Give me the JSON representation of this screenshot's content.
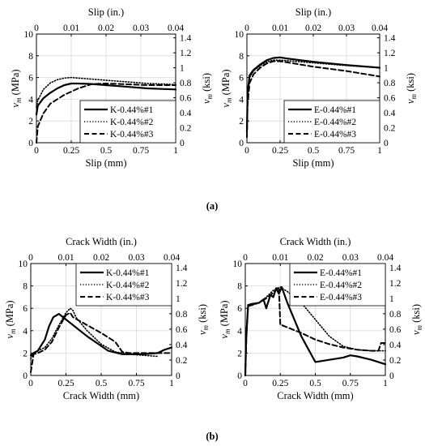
{
  "panel_labels": {
    "a": "(a)",
    "b": "(b)"
  },
  "chart_data": [
    {
      "id": "a-left",
      "type": "line",
      "xlabel": "Slip (mm)",
      "x2label": "Slip (in.)",
      "ylabel": "vm (MPa)",
      "y2label": "vm (ksi)",
      "xlim": [
        0,
        1
      ],
      "ylim": [
        0,
        10
      ],
      "x2lim": [
        0,
        0.04
      ],
      "y2lim": [
        0,
        1.45
      ],
      "x_ticks": [
        "0",
        "0.25",
        "0.5",
        "0.75",
        "1"
      ],
      "y_ticks": [
        "0",
        "2",
        "4",
        "6",
        "8",
        "10"
      ],
      "x2_ticks": [
        "0",
        "0.01",
        "0.02",
        "0.03",
        "0.04"
      ],
      "y2_ticks": [
        "0",
        "0.2",
        "0.4",
        "0.6",
        "0.8",
        "1",
        "1.2",
        "1.4"
      ],
      "legend_position": "bottom-right",
      "series": [
        {
          "name": "K-0.44%#1",
          "style": "solid",
          "x": [
            0,
            0.01,
            0.05,
            0.1,
            0.15,
            0.2,
            0.25,
            0.3,
            0.4,
            0.5,
            0.6,
            0.7,
            0.8,
            0.9,
            1.0
          ],
          "y": [
            2.6,
            3.4,
            4.1,
            4.6,
            5.0,
            5.3,
            5.45,
            5.45,
            5.4,
            5.3,
            5.2,
            5.1,
            5.0,
            4.95,
            4.9
          ]
        },
        {
          "name": "K-0.44%#2",
          "style": "dotted",
          "x": [
            0,
            0.01,
            0.05,
            0.1,
            0.15,
            0.2,
            0.25,
            0.3,
            0.4,
            0.5,
            0.6,
            0.7,
            0.8,
            0.9,
            1.0
          ],
          "y": [
            3.3,
            3.9,
            4.9,
            5.5,
            5.8,
            5.95,
            6.0,
            5.95,
            5.85,
            5.75,
            5.65,
            5.55,
            5.45,
            5.4,
            5.35
          ]
        },
        {
          "name": "K-0.44%#3",
          "style": "dashed",
          "x": [
            0,
            0.01,
            0.05,
            0.1,
            0.2,
            0.3,
            0.4,
            0.5,
            0.6,
            0.7,
            0.8,
            0.9,
            1.0
          ],
          "y": [
            0.0,
            1.5,
            2.7,
            3.6,
            4.4,
            5.0,
            5.4,
            5.45,
            5.4,
            5.35,
            5.3,
            5.3,
            5.3
          ]
        }
      ]
    },
    {
      "id": "a-right",
      "type": "line",
      "xlabel": "Slip (mm)",
      "x2label": "Slip (in.)",
      "ylabel": "vm (MPa)",
      "y2label": "vm (ksi)",
      "xlim": [
        0,
        1
      ],
      "ylim": [
        0,
        10
      ],
      "x2lim": [
        0,
        0.04
      ],
      "y2lim": [
        0,
        1.45
      ],
      "x_ticks": [
        "0",
        "0.25",
        "0.5",
        "0.75",
        "1"
      ],
      "y_ticks": [
        "0",
        "2",
        "4",
        "6",
        "8",
        "10"
      ],
      "x2_ticks": [
        "0",
        "0.01",
        "0.02",
        "0.03",
        "0.04"
      ],
      "y2_ticks": [
        "0",
        "0.2",
        "0.4",
        "0.6",
        "0.8",
        "1",
        "1.2",
        "1.4"
      ],
      "legend_position": "bottom-right",
      "series": [
        {
          "name": "E-0.44%#1",
          "style": "solid",
          "x": [
            0,
            0.005,
            0.02,
            0.05,
            0.1,
            0.15,
            0.2,
            0.25,
            0.3,
            0.5,
            0.75,
            1.0
          ],
          "y": [
            1.0,
            4.5,
            6.2,
            6.7,
            7.2,
            7.6,
            7.8,
            7.85,
            7.75,
            7.45,
            7.15,
            6.9
          ]
        },
        {
          "name": "E-0.44%#2",
          "style": "dotted",
          "x": [
            0,
            0.005,
            0.02,
            0.05,
            0.1,
            0.15,
            0.2,
            0.25,
            0.3,
            0.5,
            0.75,
            1.0
          ],
          "y": [
            1.5,
            5.0,
            6.0,
            6.6,
            7.1,
            7.45,
            7.6,
            7.6,
            7.55,
            7.35,
            7.1,
            6.9
          ]
        },
        {
          "name": "E-0.44%#3",
          "style": "dashed",
          "x": [
            0,
            0.005,
            0.02,
            0.05,
            0.1,
            0.15,
            0.2,
            0.25,
            0.3,
            0.5,
            0.75,
            1.0
          ],
          "y": [
            0.5,
            3.5,
            5.5,
            6.3,
            6.9,
            7.3,
            7.5,
            7.5,
            7.4,
            7.0,
            6.6,
            6.1
          ]
        }
      ]
    },
    {
      "id": "b-left",
      "type": "line",
      "xlabel": "Crack Width (mm)",
      "x2label": "Crack Width (in.)",
      "ylabel": "vm (MPa)",
      "y2label": "vm (ksi)",
      "xlim": [
        0,
        1
      ],
      "ylim": [
        0,
        10
      ],
      "x2lim": [
        0,
        0.04
      ],
      "y2lim": [
        0,
        1.45
      ],
      "x_ticks": [
        "0",
        "0.25",
        "0.5",
        "0.75",
        "1"
      ],
      "y_ticks": [
        "0",
        "2",
        "4",
        "6",
        "8",
        "10"
      ],
      "x2_ticks": [
        "0",
        "0.01",
        "0.02",
        "0.03",
        "0.04"
      ],
      "y2_ticks": [
        "0",
        "0.2",
        "0.4",
        "0.6",
        "0.8",
        "1",
        "1.2",
        "1.4"
      ],
      "legend_position": "top-right",
      "series": [
        {
          "name": "K-0.44%#1",
          "style": "solid",
          "x": [
            0,
            0.01,
            0.02,
            0.05,
            0.1,
            0.13,
            0.16,
            0.2,
            0.22,
            0.25,
            0.4,
            0.55,
            0.65,
            0.7,
            0.8,
            0.9,
            0.95,
            1.0
          ],
          "y": [
            1.8,
            1.9,
            2.0,
            2.2,
            3.2,
            4.4,
            5.2,
            5.5,
            5.3,
            5.0,
            3.5,
            2.2,
            1.9,
            1.9,
            1.9,
            2.0,
            2.3,
            2.5
          ]
        },
        {
          "name": "K-0.44%#2",
          "style": "dotted",
          "x": [
            0,
            0.02,
            0.05,
            0.1,
            0.15,
            0.2,
            0.25,
            0.28,
            0.3,
            0.32,
            0.4,
            0.5,
            0.6,
            0.7,
            0.8,
            0.9
          ],
          "y": [
            1.5,
            2.0,
            2.2,
            2.5,
            3.3,
            4.5,
            5.6,
            6.0,
            5.8,
            5.2,
            4.0,
            2.8,
            2.1,
            1.9,
            1.8,
            1.7
          ]
        },
        {
          "name": "K-0.44%#3",
          "style": "dashed",
          "x": [
            0,
            0.02,
            0.05,
            0.1,
            0.15,
            0.2,
            0.25,
            0.28,
            0.3,
            0.4,
            0.5,
            0.6,
            0.65,
            0.7,
            0.8,
            0.9,
            1.0
          ],
          "y": [
            0.3,
            1.9,
            2.0,
            2.3,
            3.0,
            4.3,
            5.4,
            5.6,
            5.2,
            4.5,
            3.8,
            3.0,
            2.1,
            2.0,
            2.0,
            2.0,
            2.0
          ]
        }
      ]
    },
    {
      "id": "b-right",
      "type": "line",
      "xlabel": "Crack Width (mm)",
      "x2label": "Crack Width (in.)",
      "ylabel": "vm (MPa)",
      "y2label": "vm (ksi)",
      "xlim": [
        0,
        1
      ],
      "ylim": [
        0,
        10
      ],
      "x2lim": [
        0,
        0.04
      ],
      "y2lim": [
        0,
        1.45
      ],
      "x_ticks": [
        "0",
        "0.25",
        "0.5",
        "0.75",
        "1"
      ],
      "y_ticks": [
        "0",
        "2",
        "4",
        "6",
        "8",
        "10"
      ],
      "x2_ticks": [
        "0",
        "0.01",
        "0.02",
        "0.03",
        "0.04"
      ],
      "y2_ticks": [
        "0",
        "0.2",
        "0.4",
        "0.6",
        "0.8",
        "1",
        "1.2",
        "1.4"
      ],
      "legend_position": "top-right",
      "series": [
        {
          "name": "E-0.44%#1",
          "style": "solid",
          "x": [
            0,
            0.005,
            0.01,
            0.02,
            0.05,
            0.1,
            0.13,
            0.15,
            0.18,
            0.2,
            0.22,
            0.24,
            0.26,
            0.3,
            0.4,
            0.5,
            0.6,
            0.7,
            0.75,
            0.8,
            0.9,
            1.0
          ],
          "y": [
            0.0,
            3.0,
            4.0,
            6.3,
            6.4,
            6.5,
            6.8,
            6.0,
            7.2,
            7.0,
            7.8,
            7.3,
            7.9,
            6.5,
            3.5,
            1.2,
            1.4,
            1.6,
            1.8,
            1.7,
            1.4,
            1.0
          ]
        },
        {
          "name": "E-0.44%#2",
          "style": "dotted",
          "x": [
            0,
            0.01,
            0.02,
            0.05,
            0.1,
            0.15,
            0.2,
            0.25,
            0.3,
            0.4,
            0.5,
            0.6,
            0.7,
            0.8,
            0.9,
            1.0
          ],
          "y": [
            0.0,
            4.0,
            6.2,
            6.3,
            6.5,
            7.0,
            7.6,
            7.9,
            7.5,
            6.5,
            5.0,
            3.5,
            2.6,
            2.3,
            2.2,
            2.2
          ]
        },
        {
          "name": "E-0.44%#3",
          "style": "dashed",
          "x": [
            0,
            0.01,
            0.02,
            0.05,
            0.1,
            0.15,
            0.2,
            0.24,
            0.25,
            0.26,
            0.3,
            0.4,
            0.5,
            0.6,
            0.7,
            0.8,
            0.9,
            0.95,
            0.97,
            1.0
          ],
          "y": [
            0.0,
            4.2,
            6.2,
            6.3,
            6.5,
            6.9,
            7.4,
            7.9,
            4.5,
            4.5,
            4.3,
            3.8,
            3.2,
            2.8,
            2.5,
            2.3,
            2.2,
            2.2,
            2.9,
            2.9
          ]
        }
      ]
    }
  ]
}
